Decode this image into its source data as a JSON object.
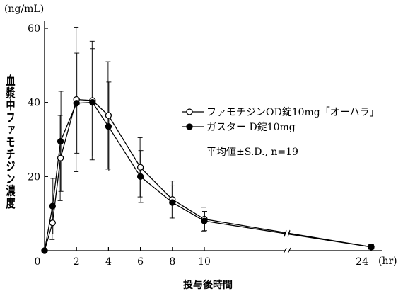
{
  "chart_data": {
    "type": "line",
    "unit_label": "(ng/mL)",
    "xlabel": "投与後時間",
    "ylabel": "血漿中ファモチジン濃度",
    "x_unit": "(hr)",
    "xlim": [
      0,
      24
    ],
    "ylim": [
      0,
      60
    ],
    "x_ticks": [
      0,
      2,
      4,
      6,
      8,
      10,
      24
    ],
    "y_ticks": [
      0,
      20,
      40,
      60
    ],
    "axis_break": "between 10 and 24 hr",
    "legend_position": "right",
    "legend_markers": [
      "open-circle",
      "filled-circle"
    ],
    "annotation": "平均値±S.D., n=19",
    "series": [
      {
        "name": "ファモチジンOD錠10mg「オーハラ」",
        "marker": "open-circle",
        "color": "#000000",
        "x": [
          0,
          0.5,
          1,
          2,
          3,
          4,
          6,
          8,
          10,
          24
        ],
        "y": [
          0,
          7.5,
          25.0,
          40.8,
          40.5,
          36.5,
          22.5,
          13.8,
          8.5,
          1.0
        ],
        "err": [
          0,
          4.5,
          11.5,
          19.5,
          16.0,
          14.5,
          8.0,
          5.0,
          3.2,
          0.6
        ]
      },
      {
        "name": "ガスター D錠10mg",
        "marker": "filled-circle",
        "color": "#000000",
        "x": [
          0,
          0.5,
          1,
          2,
          3,
          4,
          6,
          8,
          10,
          24
        ],
        "y": [
          0,
          12.0,
          29.5,
          39.8,
          40.0,
          33.5,
          20.0,
          13.0,
          8.0,
          1.0
        ],
        "err": [
          0,
          7.5,
          13.5,
          13.5,
          14.5,
          12.0,
          7.0,
          4.5,
          2.6,
          0.6
        ]
      }
    ]
  }
}
